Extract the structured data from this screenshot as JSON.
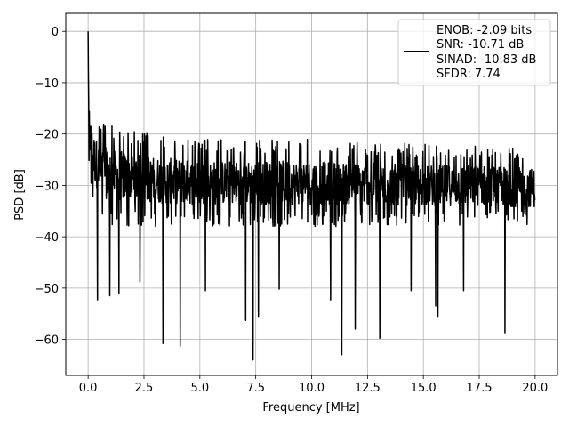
{
  "chart_data": {
    "type": "line",
    "xlabel": "Frequency [MHz]",
    "ylabel": "PSD [dB]",
    "xlim": [
      -1.0,
      21.0
    ],
    "ylim": [
      -67.0,
      3.5
    ],
    "xticks": [
      0.0,
      2.5,
      5.0,
      7.5,
      10.0,
      12.5,
      15.0,
      17.5,
      20.0
    ],
    "xtick_labels": [
      "0.0",
      "2.5",
      "5.0",
      "7.5",
      "10.0",
      "12.5",
      "15.0",
      "17.5",
      "20.0"
    ],
    "yticks": [
      0,
      -10,
      -20,
      -30,
      -40,
      -50,
      -60
    ],
    "ytick_labels": [
      "0",
      "−10",
      "−20",
      "−30",
      "−40",
      "−50",
      "−60"
    ],
    "grid": true,
    "legend_position": "top-right",
    "legend_lines": [
      "ENOB: -2.09 bits",
      "SNR: -10.71 dB",
      "SINAD: -10.83 dB",
      "SFDR: 7.74"
    ],
    "series": [
      {
        "color": "#000000",
        "x_range": [
          0.0,
          20.0
        ],
        "peak": {
          "x": 0.0,
          "y": 0.0
        },
        "envelope_x": [
          0.0,
          0.05,
          0.1,
          0.2,
          0.5,
          1.0,
          2.0,
          3.0,
          5.0,
          8.0,
          10.0,
          12.5,
          15.0,
          17.5,
          20.0
        ],
        "envelope_max": [
          0.0,
          -9.0,
          -12.0,
          -15.0,
          -17.0,
          -18.0,
          -19.0,
          -20.0,
          -21.0,
          -21.0,
          -21.0,
          -21.5,
          -22.0,
          -22.0,
          -23.0
        ],
        "envelope_min": [
          -27.0,
          -28.0,
          -30.0,
          -33.0,
          -37.0,
          -38.0,
          -38.0,
          -38.0,
          -38.0,
          -38.0,
          -38.0,
          -38.0,
          -38.0,
          -38.0,
          -38.0
        ],
        "dips": [
          {
            "x": 0.42,
            "y": -52.3
          },
          {
            "x": 0.97,
            "y": -51.5
          },
          {
            "x": 1.38,
            "y": -51.0
          },
          {
            "x": 2.32,
            "y": -48.8
          },
          {
            "x": 3.35,
            "y": -60.8
          },
          {
            "x": 4.12,
            "y": -61.3
          },
          {
            "x": 5.25,
            "y": -50.5
          },
          {
            "x": 7.05,
            "y": -56.3
          },
          {
            "x": 7.38,
            "y": -64.0
          },
          {
            "x": 7.62,
            "y": -55.5
          },
          {
            "x": 8.55,
            "y": -50.2
          },
          {
            "x": 10.85,
            "y": -52.3
          },
          {
            "x": 11.35,
            "y": -63.0
          },
          {
            "x": 11.95,
            "y": -58.0
          },
          {
            "x": 13.05,
            "y": -59.8
          },
          {
            "x": 14.45,
            "y": -50.5
          },
          {
            "x": 15.55,
            "y": -53.5
          },
          {
            "x": 15.65,
            "y": -55.5
          },
          {
            "x": 16.8,
            "y": -50.5
          },
          {
            "x": 18.65,
            "y": -58.7
          }
        ]
      }
    ]
  }
}
